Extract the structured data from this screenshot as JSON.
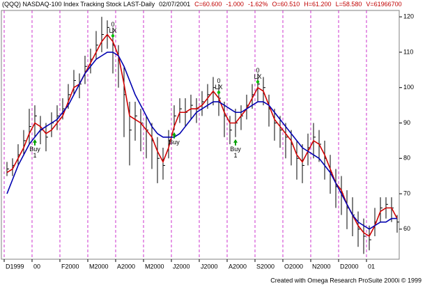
{
  "chart_data": {
    "type": "ohlc",
    "header": [
      {
        "text": "(QQQ) NASDAQ-100 Index Tracking Stock LAST-Daily",
        "color": "#000000"
      },
      {
        "text": "02/07/2001",
        "color": "#000000"
      },
      {
        "text": "C=60.600",
        "color": "#c00000"
      },
      {
        "text": "-1.000",
        "color": "#c00000"
      },
      {
        "text": "-1.62%",
        "color": "#c00000"
      },
      {
        "text": "O=60.510",
        "color": "#c00000"
      },
      {
        "text": "H=61.200",
        "color": "#c00000"
      },
      {
        "text": "L=58.580",
        "color": "#c00000"
      },
      {
        "text": "V=61966700",
        "color": "#c00000"
      }
    ],
    "footer": "Created with Omega Research ProSuite 2000i © 1999",
    "categories": [
      "D1999",
      null,
      null,
      null,
      null,
      "00",
      null,
      null,
      null,
      null,
      "F2000",
      null,
      null,
      null,
      null,
      "M2000",
      null,
      null,
      null,
      null,
      "A2000",
      null,
      null,
      null,
      null,
      "M2000",
      null,
      null,
      null,
      null,
      "J2000",
      null,
      null,
      null,
      null,
      "J2000",
      null,
      null,
      null,
      null,
      "A2000",
      null,
      null,
      null,
      null,
      "S2000",
      null,
      null,
      null,
      null,
      "O2000",
      null,
      null,
      null,
      null,
      "N2000",
      null,
      null,
      null,
      null,
      "D2000",
      null,
      null,
      null,
      null,
      "01",
      null,
      null,
      null,
      null,
      null
    ],
    "bar_color": "#000000",
    "high": [
      79,
      80,
      84,
      88,
      94,
      95,
      92,
      90,
      93,
      95,
      97,
      101,
      105,
      104,
      109,
      111,
      116,
      120,
      119,
      117,
      112,
      106,
      96,
      96,
      94,
      92,
      90,
      86,
      83,
      88,
      95,
      97,
      97,
      98,
      97,
      99,
      101,
      103,
      101,
      96,
      92,
      94,
      95,
      98,
      101,
      104,
      103,
      98,
      94,
      92,
      90,
      88,
      85,
      84,
      87,
      90,
      88,
      85,
      81,
      77,
      75,
      71,
      69,
      65,
      63,
      61,
      66,
      69,
      69,
      69,
      64
    ],
    "low": [
      75,
      75,
      78,
      81,
      84,
      86,
      84,
      82,
      86,
      88,
      91,
      94,
      98,
      97,
      101,
      104,
      108,
      110,
      111,
      104,
      100,
      86,
      78,
      85,
      82,
      80,
      77,
      73,
      74,
      80,
      88,
      90,
      89,
      91,
      90,
      92,
      94,
      95,
      92,
      86,
      84,
      86,
      88,
      91,
      94,
      96,
      95,
      89,
      85,
      83,
      80,
      78,
      74,
      73,
      78,
      80,
      79,
      74,
      70,
      66,
      64,
      60,
      58,
      55,
      53,
      54,
      58,
      62,
      63,
      62,
      59
    ],
    "close": [
      77,
      78,
      81,
      85,
      89,
      92,
      88,
      86,
      90,
      92,
      94,
      98,
      102,
      101,
      106,
      108,
      112,
      115,
      117,
      112,
      108,
      98,
      88,
      92,
      90,
      88,
      85,
      80,
      78,
      85,
      92,
      94,
      93,
      95,
      94,
      96,
      98,
      100,
      97,
      92,
      88,
      90,
      92,
      95,
      98,
      101,
      100,
      94,
      90,
      88,
      86,
      84,
      80,
      78,
      83,
      86,
      84,
      80,
      76,
      72,
      70,
      66,
      64,
      60,
      58,
      57,
      62,
      66,
      67,
      66,
      62
    ],
    "series": [
      {
        "color": "#d00000",
        "values": [
          76,
          77,
          80,
          83,
          87,
          90,
          89,
          87,
          88,
          90,
          92,
          96,
          100,
          101,
          104,
          107,
          110,
          113,
          115,
          113,
          109,
          101,
          92,
          91,
          90,
          88,
          86,
          82,
          79,
          83,
          89,
          93,
          93,
          94,
          94,
          95,
          97,
          99,
          97,
          93,
          90,
          90,
          92,
          94,
          97,
          100,
          99,
          95,
          91,
          89,
          87,
          85,
          81,
          79,
          82,
          85,
          84,
          81,
          77,
          73,
          71,
          67,
          64,
          61,
          59,
          58,
          61,
          65,
          66,
          66,
          63
        ]
      },
      {
        "color": "#0000b0",
        "values": [
          70,
          74,
          78,
          81,
          84,
          86,
          88,
          89,
          90,
          91,
          93,
          95,
          98,
          101,
          104,
          106,
          108,
          109,
          110,
          110,
          109,
          106,
          102,
          98,
          95,
          92,
          89,
          87,
          86,
          86,
          86,
          87,
          89,
          91,
          93,
          94,
          95,
          96,
          96,
          95,
          94,
          93,
          93,
          94,
          95,
          96,
          96,
          95,
          93,
          91,
          89,
          87,
          85,
          83,
          82,
          81,
          80,
          78,
          76,
          73,
          70,
          67,
          64,
          62,
          61,
          60,
          61,
          62,
          62,
          63,
          63
        ]
      }
    ],
    "signals": [
      {
        "kind": "buy",
        "text": "Buy",
        "qty": "1",
        "index": 5
      },
      {
        "kind": "exit",
        "text": "LX",
        "qty": "0",
        "index": 19
      },
      {
        "kind": "buy",
        "text": "Buy",
        "index": 30
      },
      {
        "kind": "exit",
        "text": "LX",
        "qty": "0",
        "index": 38
      },
      {
        "kind": "buy",
        "text": "Buy",
        "qty": "1",
        "index": 41
      },
      {
        "kind": "exit",
        "text": "LX",
        "qty": "0",
        "index": 45
      }
    ],
    "ylim": [
      51.5,
      121.8
    ],
    "yticks": [
      60,
      70,
      80,
      90,
      100,
      110,
      120
    ],
    "month_line_color": "#c000c0"
  }
}
